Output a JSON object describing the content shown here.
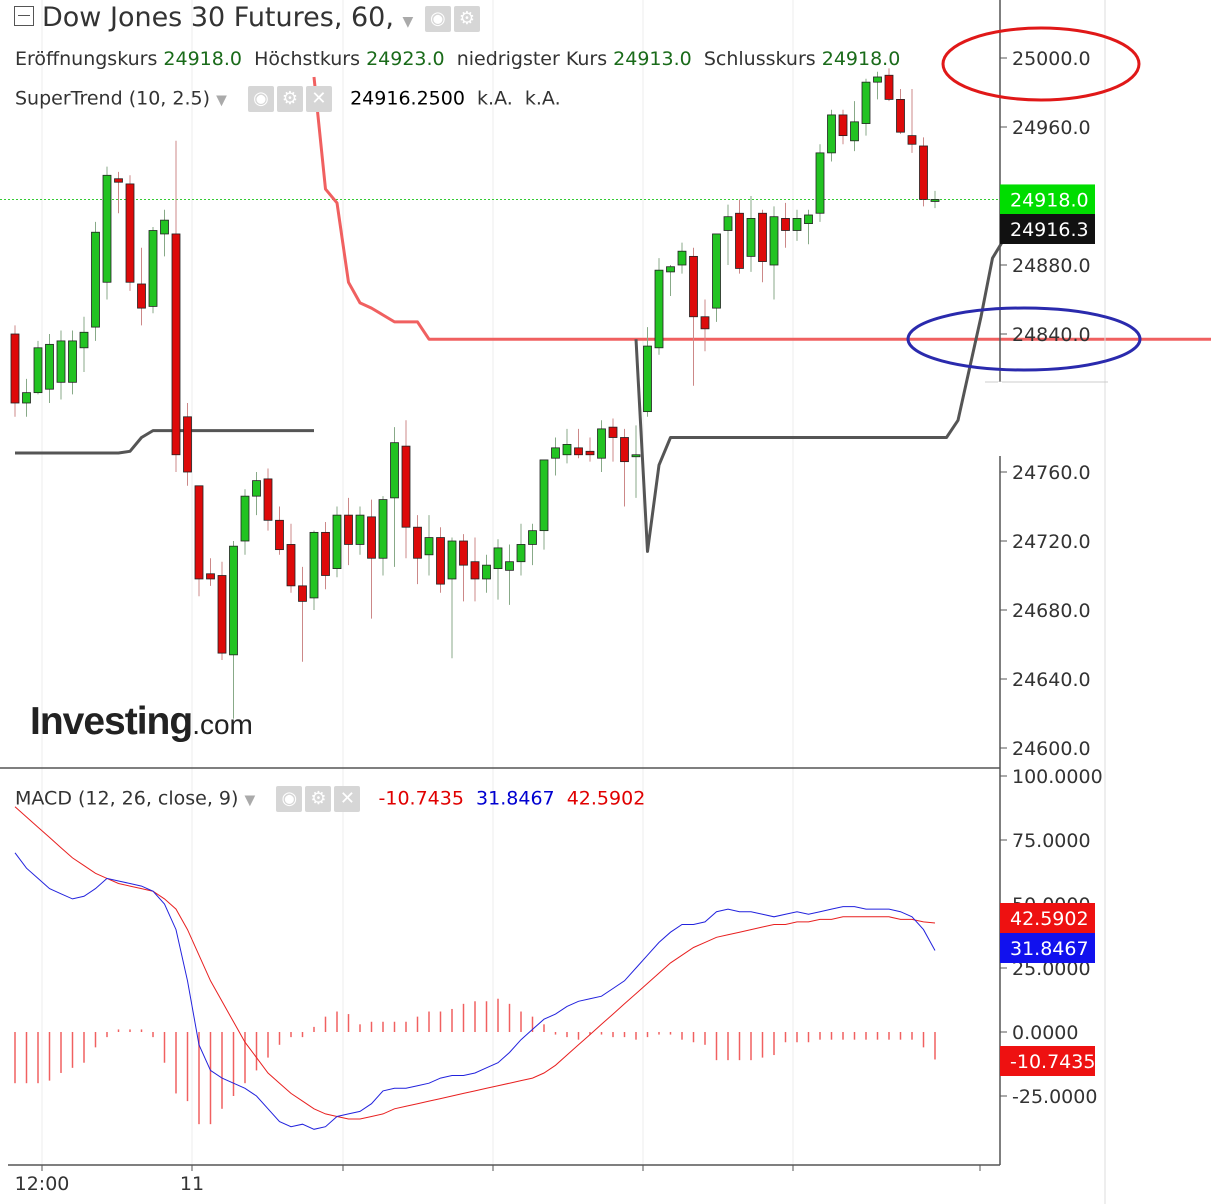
{
  "header": {
    "title": "Dow Jones 30 Futures, 60,",
    "ohlc": [
      {
        "label": "Eröffnungskurs",
        "value": "24918.0"
      },
      {
        "label": "Höchstkurs",
        "value": "24923.0"
      },
      {
        "label": "niedrigster Kurs",
        "value": "24913.0"
      },
      {
        "label": "Schlusskurs",
        "value": "24918.0"
      }
    ]
  },
  "supertrend": {
    "name": "SuperTrend (10, 2.5)",
    "value": "24916.2500",
    "extra1": "k.A.",
    "extra2": "k.A."
  },
  "macd_header": {
    "name": "MACD (12, 26, close, 9)",
    "histogram": "-10.7435",
    "macd": "31.8467",
    "signal": "42.5902"
  },
  "logo": {
    "big": "Investing",
    "small": ".com"
  },
  "colors": {
    "up": "#22c322",
    "down": "#dd0a0a",
    "supertrend_down": "#f06060",
    "supertrend_up": "#555555",
    "macd_line": "#2222dd",
    "signal_line": "#e82020",
    "histogram": "#f06060",
    "last_price": "#00dd00",
    "annotation_red": "#e01818",
    "annotation_blue": "#2a2aad"
  },
  "chart_data": [
    {
      "type": "candlestick",
      "ylim": [
        24590,
        24995
      ],
      "y_ticks": [
        "24600.0",
        "24640.0",
        "24680.0",
        "24720.0",
        "24760.0",
        "24840.0",
        "24880.0",
        "24960.0",
        "25000.0"
      ],
      "x_ticks": [
        "12:00",
        "11"
      ],
      "last_price_label": "24918.0",
      "supertrend_label": "24916.3",
      "candles": [
        {
          "o": 24840,
          "h": 24845,
          "l": 24792,
          "c": 24800
        },
        {
          "o": 24800,
          "h": 24814,
          "l": 24792,
          "c": 24806
        },
        {
          "o": 24806,
          "h": 24836,
          "l": 24805,
          "c": 24832
        },
        {
          "o": 24808,
          "h": 24840,
          "l": 24800,
          "c": 24834
        },
        {
          "o": 24812,
          "h": 24842,
          "l": 24802,
          "c": 24836
        },
        {
          "o": 24812,
          "h": 24842,
          "l": 24805,
          "c": 24836
        },
        {
          "o": 24832,
          "h": 24850,
          "l": 24818,
          "c": 24841
        },
        {
          "o": 24844,
          "h": 24905,
          "l": 24836,
          "c": 24899
        },
        {
          "o": 24870,
          "h": 24937,
          "l": 24860,
          "c": 24932
        },
        {
          "o": 24930,
          "h": 24934,
          "l": 24910,
          "c": 24928
        },
        {
          "o": 24927,
          "h": 24932,
          "l": 24865,
          "c": 24870
        },
        {
          "o": 24869,
          "h": 24890,
          "l": 24845,
          "c": 24855
        },
        {
          "o": 24856,
          "h": 24902,
          "l": 24852,
          "c": 24900
        },
        {
          "o": 24898,
          "h": 24912,
          "l": 24885,
          "c": 24906
        },
        {
          "o": 24898,
          "h": 24952,
          "l": 24760,
          "c": 24770
        },
        {
          "o": 24792,
          "h": 24800,
          "l": 24752,
          "c": 24760
        },
        {
          "o": 24752,
          "h": 24752,
          "l": 24688,
          "c": 24698
        },
        {
          "o": 24701,
          "h": 24710,
          "l": 24694,
          "c": 24698
        },
        {
          "o": 24700,
          "h": 24708,
          "l": 24651,
          "c": 24655
        },
        {
          "o": 24654,
          "h": 24720,
          "l": 24617,
          "c": 24717
        },
        {
          "o": 24720,
          "h": 24750,
          "l": 24712,
          "c": 24746
        },
        {
          "o": 24746,
          "h": 24760,
          "l": 24735,
          "c": 24755
        },
        {
          "o": 24756,
          "h": 24762,
          "l": 24726,
          "c": 24732
        },
        {
          "o": 24732,
          "h": 24740,
          "l": 24712,
          "c": 24715
        },
        {
          "o": 24718,
          "h": 24730,
          "l": 24690,
          "c": 24694
        },
        {
          "o": 24694,
          "h": 24705,
          "l": 24650,
          "c": 24685
        },
        {
          "o": 24687,
          "h": 24726,
          "l": 24680,
          "c": 24725
        },
        {
          "o": 24725,
          "h": 24731,
          "l": 24692,
          "c": 24700
        },
        {
          "o": 24704,
          "h": 24740,
          "l": 24699,
          "c": 24735
        },
        {
          "o": 24735,
          "h": 24745,
          "l": 24706,
          "c": 24718
        },
        {
          "o": 24718,
          "h": 24740,
          "l": 24712,
          "c": 24735
        },
        {
          "o": 24734,
          "h": 24744,
          "l": 24675,
          "c": 24710
        },
        {
          "o": 24710,
          "h": 24746,
          "l": 24700,
          "c": 24744
        },
        {
          "o": 24745,
          "h": 24786,
          "l": 24705,
          "c": 24777
        },
        {
          "o": 24775,
          "h": 24790,
          "l": 24710,
          "c": 24728
        },
        {
          "o": 24728,
          "h": 24735,
          "l": 24695,
          "c": 24710
        },
        {
          "o": 24712,
          "h": 24735,
          "l": 24700,
          "c": 24722
        },
        {
          "o": 24722,
          "h": 24728,
          "l": 24690,
          "c": 24695
        },
        {
          "o": 24698,
          "h": 24722,
          "l": 24652,
          "c": 24720
        },
        {
          "o": 24720,
          "h": 24724,
          "l": 24685,
          "c": 24706
        },
        {
          "o": 24708,
          "h": 24722,
          "l": 24685,
          "c": 24698
        },
        {
          "o": 24698,
          "h": 24712,
          "l": 24690,
          "c": 24706
        },
        {
          "o": 24704,
          "h": 24721,
          "l": 24686,
          "c": 24716
        },
        {
          "o": 24703,
          "h": 24718,
          "l": 24683,
          "c": 24708
        },
        {
          "o": 24708,
          "h": 24730,
          "l": 24700,
          "c": 24718
        },
        {
          "o": 24718,
          "h": 24730,
          "l": 24706,
          "c": 24726
        },
        {
          "o": 24726,
          "h": 24766,
          "l": 24715,
          "c": 24767
        },
        {
          "o": 24768,
          "h": 24780,
          "l": 24758,
          "c": 24774
        },
        {
          "o": 24770,
          "h": 24785,
          "l": 24765,
          "c": 24776
        },
        {
          "o": 24774,
          "h": 24785,
          "l": 24768,
          "c": 24770
        },
        {
          "o": 24772,
          "h": 24780,
          "l": 24766,
          "c": 24770
        },
        {
          "o": 24768,
          "h": 24790,
          "l": 24760,
          "c": 24785
        },
        {
          "o": 24786,
          "h": 24791,
          "l": 24766,
          "c": 24780
        },
        {
          "o": 24780,
          "h": 24785,
          "l": 24740,
          "c": 24766
        },
        {
          "o": 24770,
          "h": 24787,
          "l": 24745,
          "c": 24770
        },
        {
          "o": 24795,
          "h": 24844,
          "l": 24792,
          "c": 24833
        },
        {
          "o": 24832,
          "h": 24884,
          "l": 24828,
          "c": 24877
        },
        {
          "o": 24876,
          "h": 24880,
          "l": 24862,
          "c": 24879
        },
        {
          "o": 24880,
          "h": 24893,
          "l": 24875,
          "c": 24888
        },
        {
          "o": 24885,
          "h": 24890,
          "l": 24810,
          "c": 24850
        },
        {
          "o": 24850,
          "h": 24860,
          "l": 24830,
          "c": 24843
        },
        {
          "o": 24855,
          "h": 24898,
          "l": 24847,
          "c": 24898
        },
        {
          "o": 24900,
          "h": 24915,
          "l": 24880,
          "c": 24908
        },
        {
          "o": 24910,
          "h": 24918,
          "l": 24875,
          "c": 24878
        },
        {
          "o": 24885,
          "h": 24920,
          "l": 24876,
          "c": 24907
        },
        {
          "o": 24910,
          "h": 24912,
          "l": 24870,
          "c": 24882
        },
        {
          "o": 24880,
          "h": 24914,
          "l": 24860,
          "c": 24908
        },
        {
          "o": 24907,
          "h": 24916,
          "l": 24890,
          "c": 24900
        },
        {
          "o": 24900,
          "h": 24912,
          "l": 24894,
          "c": 24907
        },
        {
          "o": 24904,
          "h": 24912,
          "l": 24892,
          "c": 24909
        },
        {
          "o": 24910,
          "h": 24950,
          "l": 24905,
          "c": 24945
        },
        {
          "o": 24945,
          "h": 24970,
          "l": 24940,
          "c": 24967
        },
        {
          "o": 24967,
          "h": 24970,
          "l": 24950,
          "c": 24955
        },
        {
          "o": 24952,
          "h": 24975,
          "l": 24946,
          "c": 24963
        },
        {
          "o": 24962,
          "h": 24988,
          "l": 24955,
          "c": 24986
        },
        {
          "o": 24986,
          "h": 24992,
          "l": 24976,
          "c": 24989
        },
        {
          "o": 24990,
          "h": 24994,
          "l": 24975,
          "c": 24976
        },
        {
          "o": 24976,
          "h": 24982,
          "l": 24956,
          "c": 24957
        },
        {
          "o": 24955,
          "h": 24982,
          "l": 24945,
          "c": 24950
        },
        {
          "o": 24949,
          "h": 24954,
          "l": 24914,
          "c": 24918
        },
        {
          "o": 24918,
          "h": 24923,
          "l": 24913,
          "c": 24918
        }
      ],
      "supertrend_segments": [
        {
          "trend": "up",
          "from": 0,
          "points": [
            24771,
            24771,
            24771,
            24771,
            24771,
            24771,
            24771,
            24771,
            24771,
            24771,
            24772,
            24780,
            24784,
            24784,
            24784,
            24784,
            24784,
            24784,
            24784,
            24784,
            24784,
            24784,
            24784,
            24784,
            24784,
            24784,
            24784
          ]
        },
        {
          "trend": "down",
          "from": 26,
          "points": [
            24989,
            24924,
            24916,
            24870,
            24858,
            24855,
            24851,
            24847,
            24847,
            24847,
            24837,
            24837,
            24837,
            24837,
            24837,
            24837,
            24837,
            24837,
            24837,
            24837,
            24837,
            24837,
            24837,
            24837,
            24837,
            24837,
            24837,
            24837,
            24837,
            24837,
            24837,
            24837,
            24837,
            24837,
            24837,
            24837,
            24837,
            24837,
            24837,
            24837,
            24837,
            24837,
            24837,
            24837,
            24837,
            24837,
            24837,
            24837,
            24837,
            24837,
            24837,
            24837,
            24837,
            24837,
            24837,
            24837,
            24837,
            24837,
            24837,
            24837,
            24837,
            24837,
            24837,
            24837,
            24837,
            24837,
            24837,
            24837,
            24837,
            24837,
            24837,
            24837,
            24837,
            24837,
            24837,
            24837,
            24837,
            24837,
            24837
          ]
        },
        {
          "trend": "up",
          "from": 54,
          "points": [
            24837,
            24714,
            24764,
            24780,
            24780,
            24780,
            24780,
            24780,
            24780,
            24780,
            24780,
            24780,
            24780,
            24780,
            24780,
            24780,
            24780,
            24780,
            24780,
            24780,
            24780,
            24780,
            24780,
            24780,
            24780,
            24780,
            24780,
            24780,
            24790,
            24820,
            24850,
            24884,
            24895,
            24911,
            24916,
            24916,
            24916,
            24916
          ]
        }
      ]
    },
    {
      "type": "macd",
      "ylim": [
        -55,
        104
      ],
      "y_ticks": [
        "100.0000",
        "75.0000",
        "50.0000",
        "25.0000",
        "0.0000",
        "-25.0000"
      ],
      "histogram_label": "-10.7435",
      "macd_label": "31.8467",
      "signal_label": "42.5902",
      "macd_line": [
        70,
        64,
        60,
        56,
        54,
        52,
        53,
        56,
        60,
        59,
        58,
        57,
        55,
        50,
        40,
        20,
        -5,
        -15,
        -18,
        -20,
        -22,
        -25,
        -30,
        -35,
        -37,
        -36,
        -38,
        -37,
        -33,
        -32,
        -31,
        -28,
        -23,
        -22,
        -22,
        -21,
        -20,
        -18,
        -17,
        -17,
        -16,
        -14,
        -12,
        -8,
        -3,
        1,
        5,
        7,
        10,
        12,
        13,
        14,
        17,
        20,
        25,
        30,
        35,
        39,
        42,
        42,
        43,
        47,
        48,
        47,
        47,
        46,
        45,
        46,
        47,
        46,
        47,
        48,
        49,
        49,
        48,
        48,
        48,
        47,
        45,
        40,
        31.8467
      ],
      "signal_line": [
        88,
        84,
        80,
        76,
        72,
        68,
        65,
        62,
        60,
        58,
        57,
        56,
        55,
        52,
        48,
        40,
        30,
        20,
        12,
        4,
        -4,
        -10,
        -16,
        -20,
        -24,
        -27,
        -30,
        -32,
        -33,
        -34,
        -34,
        -33,
        -32,
        -30,
        -29,
        -28,
        -27,
        -26,
        -25,
        -24,
        -23,
        -22,
        -21,
        -20,
        -19,
        -18,
        -16,
        -13,
        -9,
        -5,
        -1,
        3,
        7,
        11,
        15,
        19,
        23,
        27,
        30,
        33,
        35,
        37,
        38,
        39,
        40,
        41,
        42,
        42,
        43,
        43,
        44,
        44,
        45,
        45,
        45,
        45,
        45,
        44,
        44,
        43,
        42.5902
      ],
      "histogram": [
        -20,
        -20,
        -20,
        -19,
        -16,
        -14,
        -12,
        -6,
        -2,
        1,
        1,
        1,
        -2,
        -12,
        -24,
        -27,
        -36,
        -36,
        -30,
        -25,
        -20,
        -15,
        -10,
        -5,
        -2,
        -2,
        2,
        6,
        8,
        7,
        3,
        4,
        4,
        4,
        4,
        6,
        8,
        8,
        9,
        11,
        12,
        12,
        13,
        11,
        8,
        6,
        3,
        -1,
        -2,
        -3,
        -1,
        -1,
        -2,
        -2,
        -3,
        -2,
        -1,
        -1,
        -3,
        -4,
        -5,
        -11,
        -11,
        -11,
        -11,
        -10,
        -9,
        -4,
        -4,
        -4,
        -3,
        -3,
        -3,
        -3,
        -3,
        -3,
        -3,
        -3,
        -3,
        -6,
        -10.7435
      ]
    }
  ]
}
